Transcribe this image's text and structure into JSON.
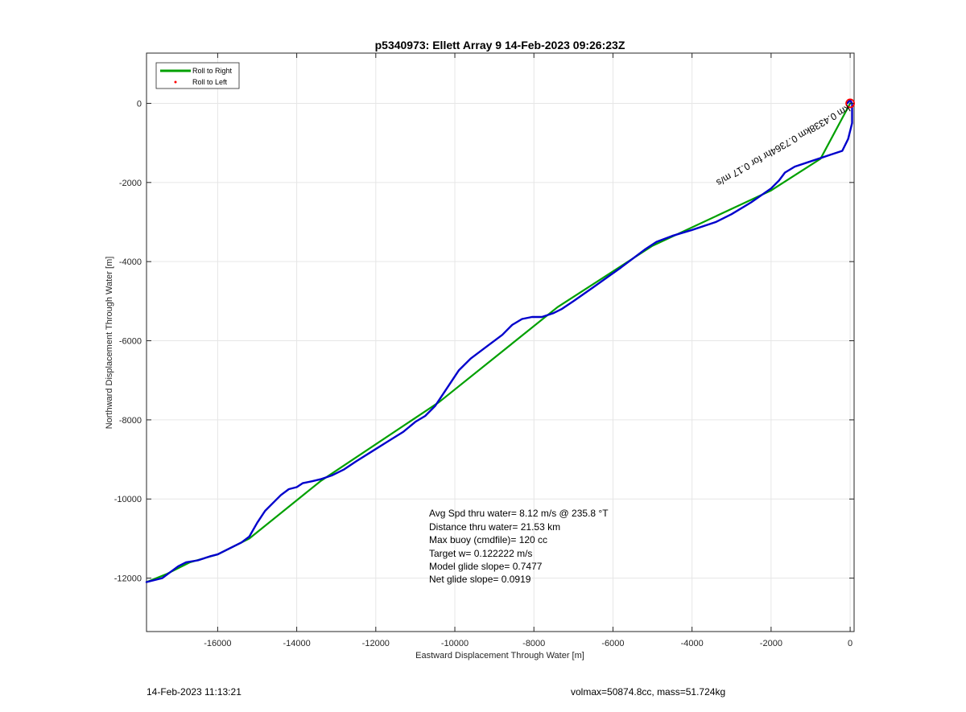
{
  "chart_data": {
    "type": "line",
    "title": "p5340973: Ellett Array 9 14-Feb-2023 09:26:23Z",
    "xlabel": "Eastward Displacement Through Water [m]",
    "ylabel": "Northward Displacement Through Water [m]",
    "xlim": [
      -17800,
      100
    ],
    "ylim": [
      -13350,
      1270
    ],
    "xticks": [
      -16000,
      -14000,
      -12000,
      -10000,
      -8000,
      -6000,
      -4000,
      -2000,
      0
    ],
    "xtick_labels": [
      "-16000",
      "-14000",
      "-12000",
      "-10000",
      "-8000",
      "-6000",
      "-4000",
      "-2000",
      "0"
    ],
    "yticks": [
      0,
      -2000,
      -4000,
      -6000,
      -8000,
      -10000,
      -12000
    ],
    "ytick_labels": [
      "0",
      "-2000",
      "-4000",
      "-6000",
      "-8000",
      "-10000",
      "-12000"
    ],
    "grid": true,
    "legend_position": "top-left",
    "legend": [
      {
        "label": "Roll to Right",
        "color": "#00a000",
        "marker": "line"
      },
      {
        "label": "Roll to Left",
        "color": "#ff0000",
        "marker": "dot"
      }
    ],
    "series": [
      {
        "name": "Roll to Right",
        "color": "#00a000",
        "x": [
          0,
          -750,
          -2000,
          -5000,
          -7400,
          -10400,
          -13400,
          -15200,
          -16000,
          -16700,
          -17300,
          -17800
        ],
        "y": [
          0,
          -1400,
          -2200,
          -3600,
          -5150,
          -7550,
          -9550,
          -11000,
          -11400,
          -11600,
          -11900,
          -12100
        ]
      },
      {
        "name": "",
        "color": "#0000cc",
        "x": [
          -80,
          0,
          50,
          50,
          -50,
          -200,
          -500,
          -800,
          -1100,
          -1400,
          -1650,
          -1800,
          -2000,
          -2500,
          -3000,
          -3400,
          -4000,
          -4500,
          -4900,
          -5200,
          -5800,
          -6500,
          -7000,
          -7300,
          -7500,
          -7800,
          -8050,
          -8300,
          -8550,
          -8800,
          -9200,
          -9600,
          -9900,
          -10100,
          -10300,
          -10500,
          -10750,
          -11000,
          -11300,
          -11700,
          -12100,
          -12500,
          -12800,
          -13100,
          -13400,
          -13600,
          -13850,
          -14000,
          -14200,
          -14400,
          -14600,
          -14800,
          -15000,
          -15200,
          -15400,
          -15700,
          -16000,
          -16200,
          -16500,
          -16800,
          -17000,
          -17200,
          -17400,
          -17800
        ],
        "y": [
          0,
          80,
          0,
          -500,
          -900,
          -1200,
          -1300,
          -1400,
          -1500,
          -1600,
          -1750,
          -1950,
          -2150,
          -2500,
          -2800,
          -3000,
          -3200,
          -3350,
          -3500,
          -3700,
          -4150,
          -4650,
          -5000,
          -5200,
          -5300,
          -5400,
          -5400,
          -5450,
          -5600,
          -5850,
          -6150,
          -6450,
          -6750,
          -7050,
          -7350,
          -7650,
          -7900,
          -8050,
          -8300,
          -8550,
          -8800,
          -9050,
          -9250,
          -9400,
          -9500,
          -9550,
          -9600,
          -9700,
          -9750,
          -9900,
          -10100,
          -10300,
          -10600,
          -10950,
          -11100,
          -11250,
          -11400,
          -11450,
          -11550,
          -11600,
          -11700,
          -11850,
          -12000,
          -12100
        ]
      }
    ],
    "start_marker": {
      "x": 0,
      "y": 0,
      "color": "#ff0000",
      "shape": "circle"
    },
    "annotations": {
      "rotated_label": "km 0.4338km 0.7364hr for 0.17 m/s",
      "stats": [
        "Avg Spd thru water=  8.12 m/s @ 235.8 °T",
        "Distance thru water= 21.53 km",
        "Max buoy (cmdfile)= 120 cc",
        "Target w= 0.122222 m/s",
        "Model glide slope= 0.7477",
        "Net glide slope= 0.0919"
      ]
    }
  },
  "footer": {
    "left": "14-Feb-2023 11:13:21",
    "right": "volmax=50874.8cc, mass=51.724kg"
  }
}
